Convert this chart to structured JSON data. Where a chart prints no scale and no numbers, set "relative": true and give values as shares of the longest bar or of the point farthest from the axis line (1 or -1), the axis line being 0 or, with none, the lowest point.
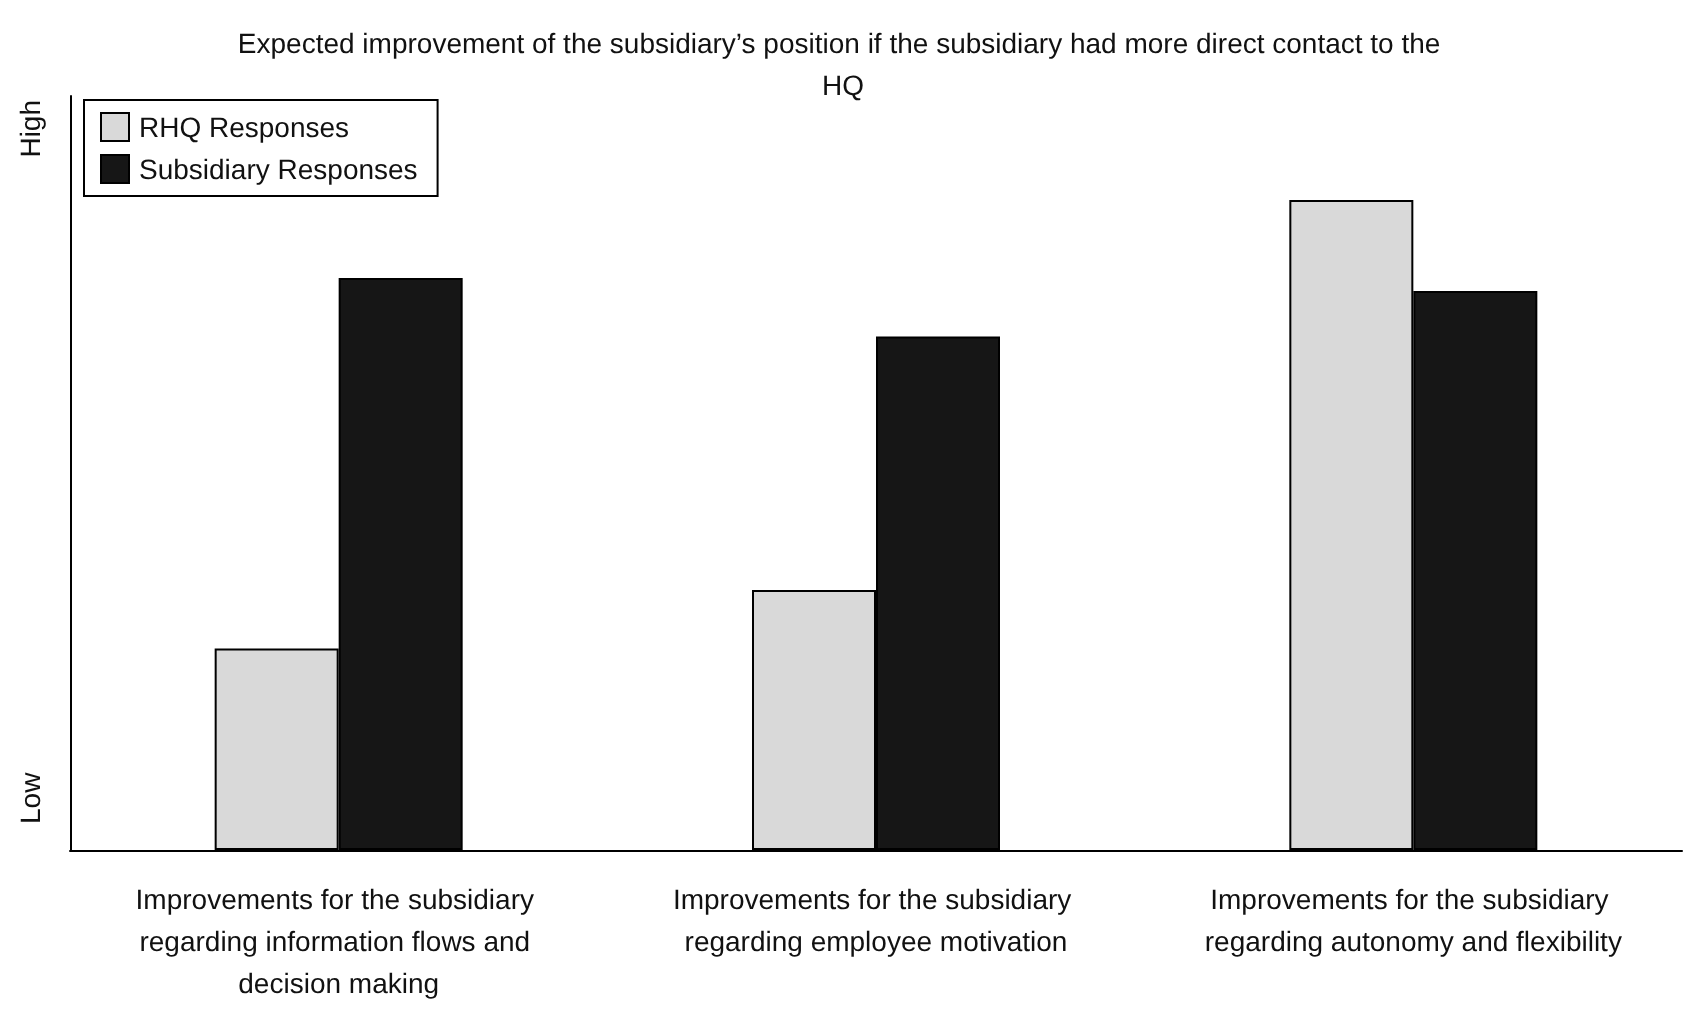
{
  "chart_data": {
    "type": "bar",
    "title": "Expected improvement of the subsidiary’s position if the subsidiary had more direct contact to the HQ",
    "categories": [
      "Improvements for the subsidiary regarding information flows and decision making",
      "Improvements for the subsidiary regarding employee motivation",
      "Improvements for the subsidiary regarding autonomy and flexibility"
    ],
    "series": [
      {
        "name": "RHQ Responses",
        "color": "#d9d9d9",
        "values": [
          0.31,
          0.4,
          1
        ]
      },
      {
        "name": "Subsidiary Responses",
        "color": "#161616",
        "values": [
          0.88,
          0.79,
          0.86
        ]
      }
    ],
    "relative": true,
    "legend": "top left",
    "grid": false,
    "annotations": [
      "High",
      "Low"
    ]
  }
}
